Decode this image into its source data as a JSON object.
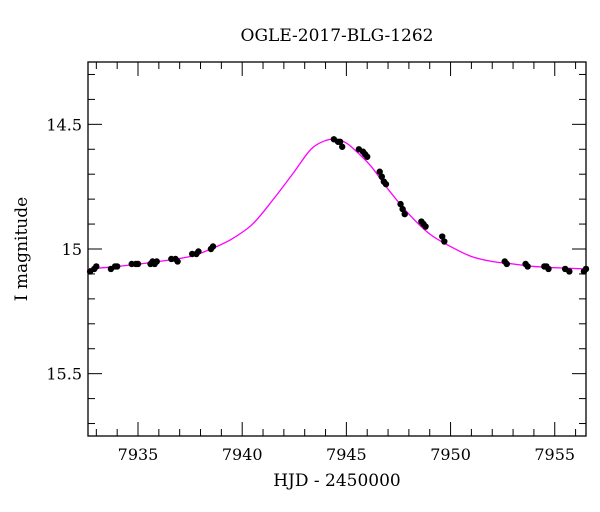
{
  "chart_data": {
    "type": "scatter",
    "title": "OGLE-2017-BLG-1262",
    "xlabel": "HJD - 2450000",
    "ylabel": "I magnitude",
    "xlim": [
      7932.6,
      7956.5
    ],
    "ylim": [
      15.75,
      14.25
    ],
    "y_inverted": true,
    "grid": false,
    "x_ticks": [
      7935,
      7940,
      7945,
      7950,
      7955
    ],
    "x_tick_labels": [
      "7935",
      "7940",
      "7945",
      "7950",
      "7955"
    ],
    "y_ticks": [
      14.5,
      15,
      15.5
    ],
    "y_tick_labels": [
      "14.5",
      "15",
      "15.5"
    ],
    "colors": {
      "data": "#000000",
      "model": "#ff00ff"
    },
    "series": [
      {
        "kind": "points",
        "x": [
          7932.7,
          7932.9,
          7933.0,
          7933.7,
          7933.9,
          7934.0,
          7934.7,
          7934.9,
          7935.0,
          7935.6,
          7935.7,
          7935.8,
          7935.9,
          7936.6,
          7936.8,
          7936.9,
          7937.6,
          7937.8,
          7937.9,
          7938.5,
          7938.6,
          7944.4,
          7944.6,
          7944.7,
          7944.8,
          7945.6,
          7945.8,
          7945.9,
          7946.0,
          7946.6,
          7946.7,
          7946.8,
          7946.9,
          7947.6,
          7947.7,
          7947.8,
          7948.6,
          7948.7,
          7948.8,
          7949.6,
          7949.7,
          7952.6,
          7952.7,
          7953.6,
          7953.7,
          7954.5,
          7954.6,
          7954.7,
          7955.5,
          7955.7,
          7956.4,
          7956.5
        ],
        "y": [
          15.09,
          15.08,
          15.07,
          15.08,
          15.07,
          15.07,
          15.06,
          15.06,
          15.06,
          15.06,
          15.05,
          15.06,
          15.05,
          15.04,
          15.04,
          15.05,
          15.02,
          15.02,
          15.01,
          15.0,
          14.99,
          14.56,
          14.57,
          14.57,
          14.59,
          14.6,
          14.61,
          14.62,
          14.63,
          14.69,
          14.71,
          14.73,
          14.74,
          14.82,
          14.84,
          14.86,
          14.89,
          14.9,
          14.91,
          14.95,
          14.97,
          15.05,
          15.06,
          15.06,
          15.07,
          15.07,
          15.07,
          15.08,
          15.08,
          15.09,
          15.09,
          15.08
        ]
      },
      {
        "kind": "model",
        "x": [
          7932.6,
          7934.0,
          7936.0,
          7937.5,
          7938.5,
          7939.5,
          7940.5,
          7941.5,
          7942.5,
          7943.3,
          7944.0,
          7944.5,
          7945.0,
          7945.5,
          7946.2,
          7947.0,
          7948.0,
          7949.0,
          7950.0,
          7951.0,
          7952.0,
          7953.0,
          7954.0,
          7955.0,
          7956.5
        ],
        "y": [
          15.08,
          15.07,
          15.05,
          15.03,
          15.0,
          14.96,
          14.9,
          14.8,
          14.69,
          14.6,
          14.565,
          14.56,
          14.575,
          14.61,
          14.67,
          14.76,
          14.86,
          14.94,
          14.99,
          15.03,
          15.05,
          15.06,
          15.07,
          15.075,
          15.08
        ]
      }
    ]
  }
}
